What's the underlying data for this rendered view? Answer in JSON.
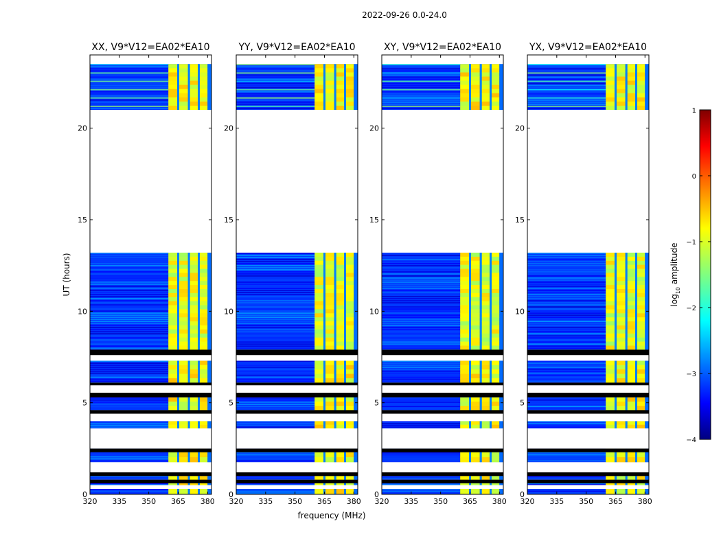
{
  "chart_data": {
    "type": "heatmap",
    "title": "2022-09-26 0.0-24.0",
    "xlabel": "frequency (MHz)",
    "ylabel": "UT (hours)",
    "xlim": [
      320,
      382
    ],
    "ylim": [
      0,
      24
    ],
    "x_ticks": [
      320,
      335,
      350,
      365,
      380
    ],
    "y_ticks": [
      0,
      5,
      10,
      15,
      20
    ],
    "colorbar": {
      "label": "log10 amplitude",
      "label_main": "log",
      "label_sub": "10",
      "label_rest": " amplitude",
      "range": [
        -4,
        1
      ],
      "ticks": [
        1,
        0,
        -1,
        -2,
        -3,
        -4
      ],
      "tick_labels": [
        "1",
        "0",
        "−1",
        "−2",
        "−3",
        "−4"
      ],
      "colormap": "jet"
    },
    "panels": [
      {
        "label": "XX, V9*V12=EA02*EA10",
        "pol": "XX",
        "strong_level": 0.92
      },
      {
        "label": "YY, V9*V12=EA02*EA10",
        "pol": "YY",
        "strong_level": 0.62
      },
      {
        "label": "XY, V9*V12=EA02*EA10",
        "pol": "XY",
        "strong_level": 0.85
      },
      {
        "label": "YX, V9*V12=EA02*EA10",
        "pol": "YX",
        "strong_level": 0.88
      }
    ],
    "signal_band_mhz": [
      360,
      380
    ],
    "signal_channels_mhz": [
      [
        360,
        364.5
      ],
      [
        365.5,
        370
      ],
      [
        371,
        375
      ],
      [
        376,
        380
      ]
    ],
    "gap_mhz": [
      [
        364.5,
        365.5
      ],
      [
        370,
        371
      ],
      [
        375,
        376
      ]
    ],
    "missing_time_hours": [
      [
        13.2,
        21.0
      ],
      [
        7.6,
        7.3
      ],
      [
        5.95,
        5.55
      ],
      [
        4.4,
        4.0
      ],
      [
        3.6,
        3.5
      ],
      [
        3.05,
        2.5
      ],
      [
        1.75,
        1.35
      ],
      [
        0.5,
        0.3
      ]
    ],
    "flagged_time_hours": [
      [
        13.4,
        13.2
      ],
      [
        7.9,
        7.6
      ],
      [
        6.1,
        5.95
      ],
      [
        5.55,
        5.3
      ],
      [
        4.6,
        4.4
      ],
      [
        2.5,
        2.3
      ],
      [
        1.2,
        1.0
      ],
      [
        0.8,
        0.6
      ]
    ],
    "data_blocks_hours": [
      [
        21.0,
        23.5
      ],
      [
        7.9,
        13.2
      ],
      [
        6.1,
        7.3
      ],
      [
        4.6,
        5.3
      ],
      [
        3.6,
        4.0
      ],
      [
        2.3,
        2.5
      ],
      [
        1.75,
        2.3
      ],
      [
        0.5,
        0.6
      ],
      [
        0.8,
        1.0
      ],
      [
        0.0,
        0.3
      ]
    ],
    "background_level": 0.18
  }
}
